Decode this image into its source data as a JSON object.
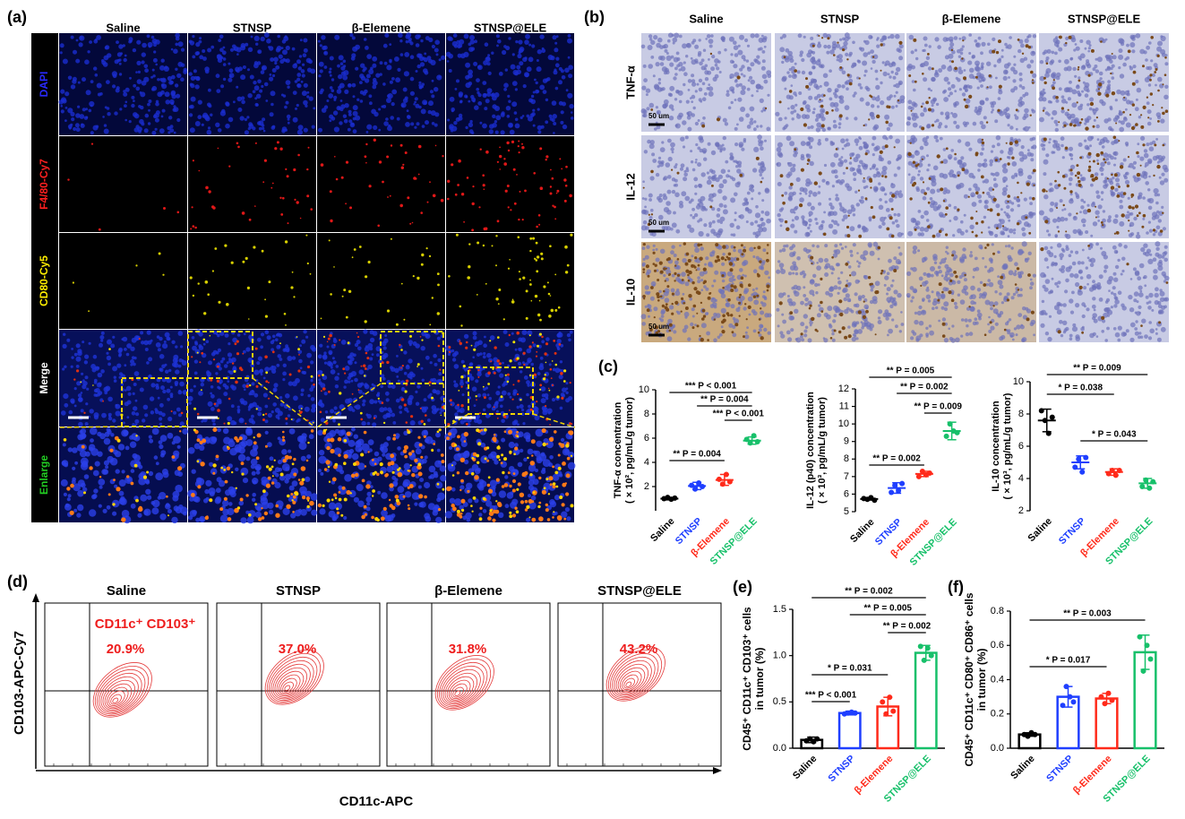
{
  "panel_a": {
    "letter": "(a)",
    "columns": [
      "Saline",
      "STNSP",
      "β-Elemene",
      "STNSP@ELE"
    ],
    "rows": [
      "DAPI",
      "F4/80-Cy7",
      "CD80-Cy5",
      "Merge",
      "Enlarge"
    ],
    "row_colors": [
      "#2a2aff",
      "#ff2020",
      "#ffee00",
      "#ffffff",
      "#22cc22"
    ]
  },
  "panel_b": {
    "letter": "(b)",
    "columns": [
      "Saline",
      "STNSP",
      "β-Elemene",
      "STNSP@ELE"
    ],
    "rows": [
      "TNF-α",
      "IL-12",
      "IL-10"
    ],
    "scale_bar": "50 um"
  },
  "panel_c": {
    "letter": "(c)"
  },
  "panel_d": {
    "letter": "(d)",
    "columns": [
      "Saline",
      "STNSP",
      "β-Elemene",
      "STNSP@ELE"
    ],
    "gate_label": "CD11c⁺ CD103⁺",
    "gate_values": [
      "20.9%",
      "37.0%",
      "31.8%",
      "43.2%"
    ],
    "ylabel": "CD103-APC-Cy7",
    "xlabel": "CD11c-APC"
  },
  "panel_e": {
    "letter": "(e)"
  },
  "panel_f": {
    "letter": "(f)"
  },
  "chart_data": [
    {
      "type": "dot",
      "ylabel": [
        "TNF-α concentration",
        "( × 10², pg/mL/g tumor)"
      ],
      "categories": [
        "Saline",
        "STNSP",
        "β-Elemene",
        "STNSP@ELE"
      ],
      "colors": [
        "#000000",
        "#1f3fff",
        "#ff2a1a",
        "#17c06a"
      ],
      "values": [
        1.0,
        2.05,
        2.55,
        5.8
      ],
      "errors": [
        0.1,
        0.3,
        0.45,
        0.3
      ],
      "points": [
        [
          1.0,
          1.1,
          0.95,
          1.05
        ],
        [
          2.1,
          1.8,
          2.3,
          2.0
        ],
        [
          2.6,
          2.2,
          3.0,
          2.4
        ],
        [
          5.9,
          5.6,
          6.2,
          5.7
        ]
      ],
      "ylim": [
        0,
        10
      ],
      "yticks": [
        2,
        4,
        6,
        8,
        10
      ],
      "annotations": [
        "*** P < 0.001",
        "** P = 0.004",
        "*** P < 0.001",
        "** P = 0.004"
      ]
    },
    {
      "type": "dot",
      "ylabel": [
        "IL-12 (p40) concentration",
        "( × 10³, pg/mL/g tumor)"
      ],
      "categories": [
        "Saline",
        "STNSP",
        "β-Elemene",
        "STNSP@ELE"
      ],
      "colors": [
        "#000000",
        "#1f3fff",
        "#ff2a1a",
        "#17c06a"
      ],
      "values": [
        5.72,
        6.35,
        7.15,
        9.6
      ],
      "errors": [
        0.06,
        0.3,
        0.15,
        0.5
      ],
      "points": [
        [
          5.75,
          5.7,
          5.8,
          5.65
        ],
        [
          6.1,
          6.5,
          6.2,
          6.6
        ],
        [
          7.0,
          7.3,
          7.1,
          7.2
        ],
        [
          9.3,
          10.0,
          9.6,
          9.5
        ]
      ],
      "ylim": [
        5,
        12
      ],
      "yticks": [
        5,
        6,
        7,
        8,
        9,
        10,
        11,
        12
      ],
      "annotations": [
        "** P = 0.005",
        "** P = 0.002",
        "** P = 0.009",
        "** P = 0.002"
      ]
    },
    {
      "type": "dot",
      "ylabel": [
        "IL-10 concentration",
        "( × 10³, pg/mL/g tumor)"
      ],
      "categories": [
        "Saline",
        "STNSP",
        "β-Elemene",
        "STNSP@ELE"
      ],
      "colors": [
        "#000000",
        "#1f3fff",
        "#ff2a1a",
        "#17c06a"
      ],
      "values": [
        7.6,
        5.0,
        4.4,
        3.7
      ],
      "errors": [
        0.7,
        0.4,
        0.2,
        0.3
      ],
      "points": [
        [
          8.2,
          7.6,
          6.8,
          7.8
        ],
        [
          4.7,
          5.2,
          4.4,
          5.3
        ],
        [
          4.3,
          4.5,
          4.2,
          4.5
        ],
        [
          3.5,
          3.9,
          3.4,
          3.8
        ]
      ],
      "ylim": [
        2,
        10
      ],
      "yticks": [
        2,
        4,
        6,
        8,
        10
      ],
      "annotations": [
        "** P = 0.009",
        "* P = 0.038",
        "* P = 0.043"
      ]
    },
    {
      "type": "bar",
      "ylabel": [
        "CD45⁺ CD11c⁺ CD103⁺ cells",
        "in tumor (%)"
      ],
      "categories": [
        "Saline",
        "STNSP",
        "β-Elemene",
        "STNSP@ELE"
      ],
      "colors": [
        "#000000",
        "#1f3fff",
        "#ff2a1a",
        "#17c06a"
      ],
      "values": [
        0.09,
        0.38,
        0.45,
        1.03
      ],
      "errors": [
        0.03,
        0.02,
        0.1,
        0.08
      ],
      "points": [
        [
          0.08,
          0.1,
          0.07,
          0.1
        ],
        [
          0.37,
          0.38,
          0.39,
          0.38
        ],
        [
          0.5,
          0.37,
          0.55,
          0.4
        ],
        [
          1.1,
          0.95,
          1.08,
          1.0
        ]
      ],
      "ylim": [
        0,
        1.5
      ],
      "yticks": [
        {
          "value": 0,
          "label": "0.0"
        },
        {
          "value": 0.5,
          "label": "0.5"
        },
        {
          "value": 1,
          "label": "1.0"
        },
        {
          "value": 1.5,
          "label": "1.5"
        }
      ],
      "annotations": [
        "** P = 0.002",
        "** P = 0.005",
        "** P = 0.002",
        "* P = 0.031",
        "*** P < 0.001"
      ]
    },
    {
      "type": "bar",
      "ylabel": [
        "CD45⁺ CD11c⁺ CD80⁺ CD86⁺ cells",
        "in tumor (%)"
      ],
      "categories": [
        "Saline",
        "STNSP",
        "β-Elemene",
        "STNSP@ELE"
      ],
      "colors": [
        "#000000",
        "#1f3fff",
        "#ff2a1a",
        "#17c06a"
      ],
      "values": [
        0.08,
        0.3,
        0.29,
        0.56
      ],
      "errors": [
        0.01,
        0.06,
        0.03,
        0.1
      ],
      "points": [
        [
          0.08,
          0.07,
          0.09,
          0.08
        ],
        [
          0.25,
          0.36,
          0.3,
          0.27
        ],
        [
          0.3,
          0.26,
          0.32,
          0.28
        ],
        [
          0.65,
          0.45,
          0.6,
          0.52
        ]
      ],
      "ylim": [
        0,
        0.8
      ],
      "yticks": [
        {
          "value": 0,
          "label": "0.0"
        },
        {
          "value": 0.2,
          "label": "0.2"
        },
        {
          "value": 0.4,
          "label": "0.4"
        },
        {
          "value": 0.6,
          "label": "0.6"
        },
        {
          "value": 0.8,
          "label": "0.8"
        }
      ],
      "annotations": [
        "** P = 0.003",
        "* P = 0.017"
      ]
    }
  ]
}
